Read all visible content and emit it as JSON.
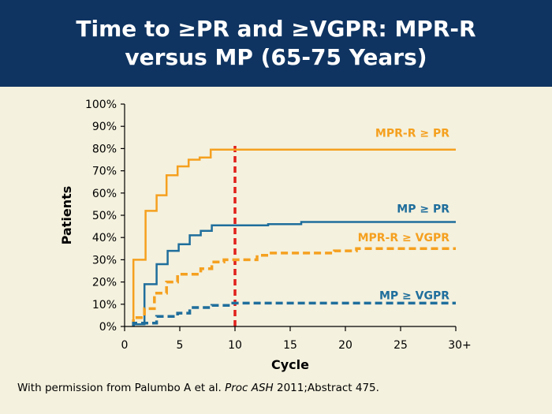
{
  "slide": {
    "title": "Time to ≥PR and ≥VGPR: MPR-R versus MP (65-75 Years)",
    "citation": {
      "before": "With permission from Palumbo A et al. ",
      "journal": "Proc ASH",
      "after": " 2011;Abstract 475."
    }
  },
  "chart_data": {
    "type": "line",
    "step": true,
    "title": "",
    "xlabel": "Cycle",
    "ylabel": "Patients",
    "xlim": [
      0,
      30
    ],
    "ylim": [
      0,
      100
    ],
    "x_ticks": [
      {
        "value": 0,
        "label": "0"
      },
      {
        "value": 5,
        "label": "5"
      },
      {
        "value": 10,
        "label": "10"
      },
      {
        "value": 15,
        "label": "15"
      },
      {
        "value": 20,
        "label": "20"
      },
      {
        "value": 25,
        "label": "25"
      },
      {
        "value": 30,
        "label": "30+"
      }
    ],
    "y_ticks": [
      {
        "value": 0,
        "label": "0%"
      },
      {
        "value": 10,
        "label": "10%"
      },
      {
        "value": 20,
        "label": "20%"
      },
      {
        "value": 30,
        "label": "30%"
      },
      {
        "value": 40,
        "label": "40%"
      },
      {
        "value": 50,
        "label": "50%"
      },
      {
        "value": 60,
        "label": "60%"
      },
      {
        "value": 70,
        "label": "70%"
      },
      {
        "value": 80,
        "label": "80%"
      },
      {
        "value": 90,
        "label": "90%"
      },
      {
        "value": 100,
        "label": "100%"
      }
    ],
    "grid": false,
    "reference_line": {
      "x": 10,
      "color": "#e0201b",
      "dashed": true
    },
    "series": [
      {
        "name": "MPR-R ≥ PR",
        "color": "#f5a01f",
        "dashed": false,
        "label_anchor": [
          30,
          87
        ],
        "points": [
          [
            0.8,
            0
          ],
          [
            0.8,
            30
          ],
          [
            1.9,
            30
          ],
          [
            1.9,
            52
          ],
          [
            2.9,
            52
          ],
          [
            2.9,
            59
          ],
          [
            3.8,
            59
          ],
          [
            3.8,
            68
          ],
          [
            4.8,
            68
          ],
          [
            4.8,
            72
          ],
          [
            5.8,
            72
          ],
          [
            5.8,
            75
          ],
          [
            6.8,
            75
          ],
          [
            6.8,
            76
          ],
          [
            7.8,
            76
          ],
          [
            7.8,
            79.5
          ],
          [
            30,
            79.5
          ]
        ]
      },
      {
        "name": "MP ≥ PR",
        "color": "#1f6e9c",
        "dashed": false,
        "label_anchor": [
          30,
          53
        ],
        "points": [
          [
            0.8,
            0
          ],
          [
            0.8,
            1
          ],
          [
            1.8,
            1
          ],
          [
            1.8,
            19
          ],
          [
            2.9,
            19
          ],
          [
            2.9,
            28
          ],
          [
            3.9,
            28
          ],
          [
            3.9,
            34
          ],
          [
            4.9,
            34
          ],
          [
            4.9,
            37
          ],
          [
            5.9,
            37
          ],
          [
            5.9,
            41
          ],
          [
            6.9,
            41
          ],
          [
            6.9,
            43
          ],
          [
            7.9,
            43
          ],
          [
            7.9,
            45.5
          ],
          [
            13,
            45.5
          ],
          [
            13,
            46
          ],
          [
            16,
            46
          ],
          [
            16,
            47
          ],
          [
            30,
            47
          ]
        ]
      },
      {
        "name": "MPR-R ≥ VGPR",
        "color": "#f5a01f",
        "dashed": true,
        "label_anchor": [
          30,
          40
        ],
        "points": [
          [
            0.8,
            0
          ],
          [
            0.8,
            4
          ],
          [
            1.8,
            4
          ],
          [
            1.8,
            8
          ],
          [
            2.7,
            8
          ],
          [
            2.7,
            15
          ],
          [
            3.8,
            15
          ],
          [
            3.8,
            20
          ],
          [
            4.8,
            20
          ],
          [
            4.8,
            23.5
          ],
          [
            6.9,
            23.5
          ],
          [
            6.9,
            26
          ],
          [
            7.9,
            26
          ],
          [
            7.9,
            29
          ],
          [
            9,
            29
          ],
          [
            9,
            30
          ],
          [
            12,
            30
          ],
          [
            12,
            32
          ],
          [
            13,
            32
          ],
          [
            13,
            33
          ],
          [
            19,
            33
          ],
          [
            19,
            34
          ],
          [
            21,
            34
          ],
          [
            21,
            35
          ],
          [
            30,
            35
          ]
        ]
      },
      {
        "name": "MP ≥ VGPR",
        "color": "#1f6e9c",
        "dashed": true,
        "label_anchor": [
          30,
          14
        ],
        "points": [
          [
            0.8,
            0
          ],
          [
            0.8,
            1.5
          ],
          [
            2.9,
            1.5
          ],
          [
            2.9,
            4.5
          ],
          [
            4.8,
            4.5
          ],
          [
            4.8,
            6
          ],
          [
            5.9,
            6
          ],
          [
            5.9,
            8.5
          ],
          [
            7.9,
            8.5
          ],
          [
            7.9,
            9.5
          ],
          [
            9.8,
            9.5
          ],
          [
            9.8,
            10.5
          ],
          [
            30,
            10.5
          ]
        ]
      }
    ]
  }
}
